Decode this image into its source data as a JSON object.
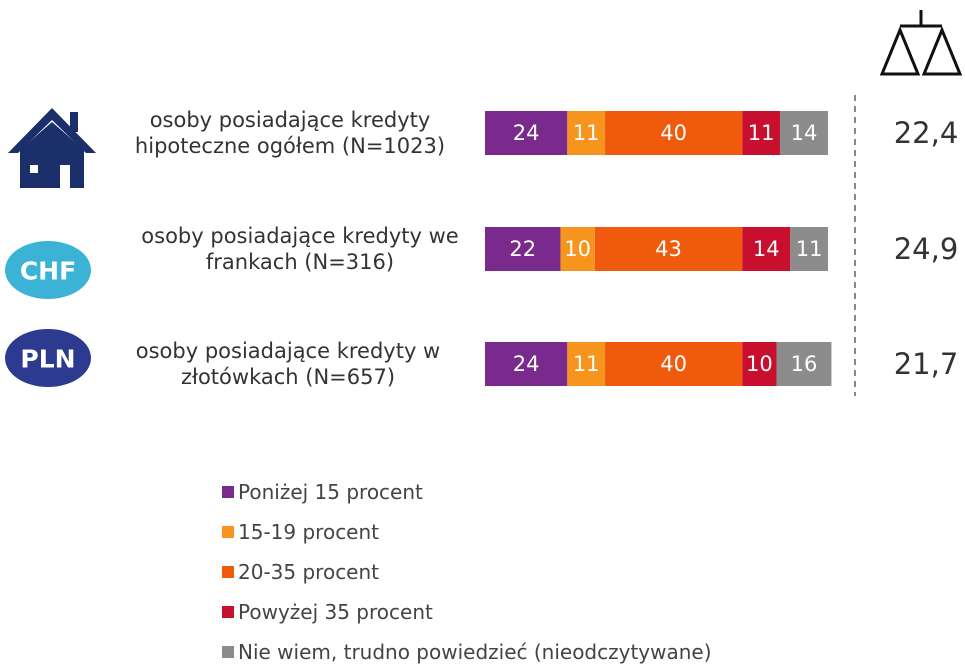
{
  "chart_data": {
    "type": "stacked_bar_horizontal",
    "categories": [
      "osoby posiadające kredyty hipoteczne ogółem (N=1023)",
      "osoby posiadające kredyty we frankach (N=316)",
      "osoby posiadające kredyty w złotówkach (N=657)"
    ],
    "badges": [
      "CHF",
      "PLN"
    ],
    "averages": [
      "22,4",
      "24,9",
      "21,7"
    ],
    "series": [
      {
        "name": "Poniżej 15 procent",
        "color": "#7a2a8c",
        "values": [
          24,
          22,
          24
        ]
      },
      {
        "name": "15-19 procent",
        "color": "#f7941d",
        "values": [
          11,
          10,
          11
        ]
      },
      {
        "name": "20-35 procent",
        "color": "#f05a0c",
        "values": [
          40,
          43,
          40
        ]
      },
      {
        "name": "Powyżej 35 procent",
        "color": "#c8102e",
        "values": [
          11,
          14,
          10
        ]
      },
      {
        "name": "Nie wiem, trudno powiedzieć (nieodczytywane)",
        "color": "#8c8c8c",
        "values": [
          14,
          11,
          16
        ]
      }
    ],
    "legend": "bottom"
  }
}
